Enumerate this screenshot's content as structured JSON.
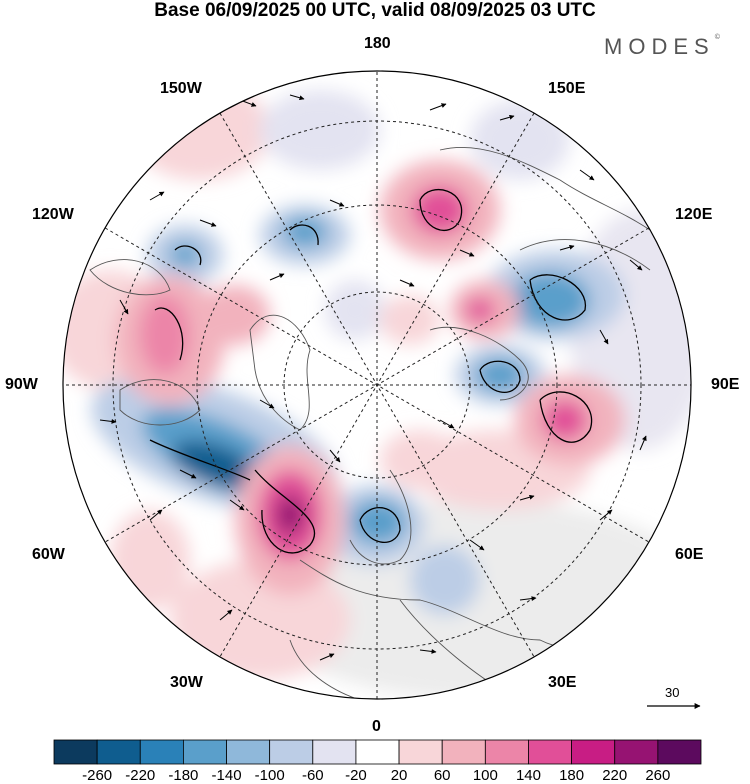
{
  "title": "Base 06/09/2025 00 UTC, valid 08/09/2025 03 UTC",
  "logo": "MODES",
  "logo_mark": "©",
  "longitude_labels": {
    "n180": "180",
    "w150": "150W",
    "e150": "150E",
    "w120": "120W",
    "e120": "120E",
    "w90": "90W",
    "e90": "90E",
    "w60": "60W",
    "e60": "60E",
    "w30": "30W",
    "e30": "30E",
    "s0": "0"
  },
  "reference_vector": "30",
  "colorbar": {
    "labels": [
      "-260",
      "-220",
      "-180",
      "-140",
      "-100",
      "-60",
      "-20",
      "20",
      "60",
      "100",
      "140",
      "180",
      "220",
      "260"
    ],
    "colors": [
      "#0c3a5e",
      "#0f5d8f",
      "#2a81b8",
      "#5a9fcb",
      "#8fb8da",
      "#bccde6",
      "#e3e3f1",
      "#ffffff",
      "#f8d6d9",
      "#f2b2bd",
      "#ec85a8",
      "#e14f98",
      "#c81d84",
      "#961372",
      "#5c0a5e"
    ]
  }
}
